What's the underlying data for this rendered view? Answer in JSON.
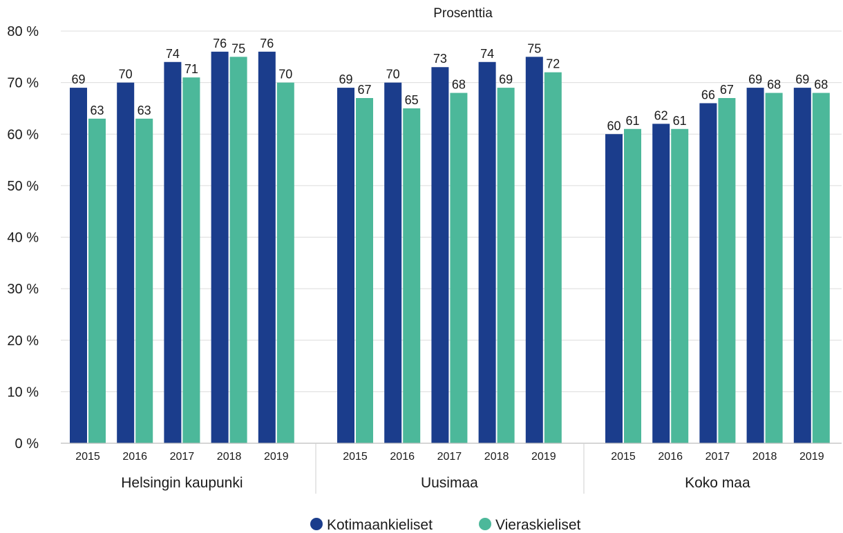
{
  "chart_data": {
    "type": "bar",
    "title": "Prosenttia",
    "ylim": [
      0,
      80
    ],
    "yticks": [
      "0 %",
      "10 %",
      "20 %",
      "30 %",
      "40 %",
      "50 %",
      "60 %",
      "70 %",
      "80 %"
    ],
    "grid": true,
    "legend_position": "bottom-center",
    "colors": {
      "Kotimaankieliset": "#1b3d8c",
      "Vieraskieliset": "#4cb89a"
    },
    "groups": [
      {
        "name": "Helsingin kaupunki",
        "categories": [
          "2015",
          "2016",
          "2017",
          "2018",
          "2019"
        ],
        "series": [
          {
            "name": "Kotimaankieliset",
            "values": [
              69,
              70,
              74,
              76,
              76
            ]
          },
          {
            "name": "Vieraskieliset",
            "values": [
              63,
              63,
              71,
              75,
              70
            ]
          }
        ]
      },
      {
        "name": "Uusimaa",
        "categories": [
          "2015",
          "2016",
          "2017",
          "2018",
          "2019"
        ],
        "series": [
          {
            "name": "Kotimaankieliset",
            "values": [
              69,
              70,
              73,
              74,
              75
            ]
          },
          {
            "name": "Vieraskieliset",
            "values": [
              67,
              65,
              68,
              69,
              72
            ]
          }
        ]
      },
      {
        "name": "Koko maa",
        "categories": [
          "2015",
          "2016",
          "2017",
          "2018",
          "2019"
        ],
        "series": [
          {
            "name": "Kotimaankieliset",
            "values": [
              60,
              62,
              66,
              69,
              69
            ]
          },
          {
            "name": "Vieraskieliset",
            "values": [
              61,
              61,
              67,
              68,
              68
            ]
          }
        ]
      }
    ]
  }
}
